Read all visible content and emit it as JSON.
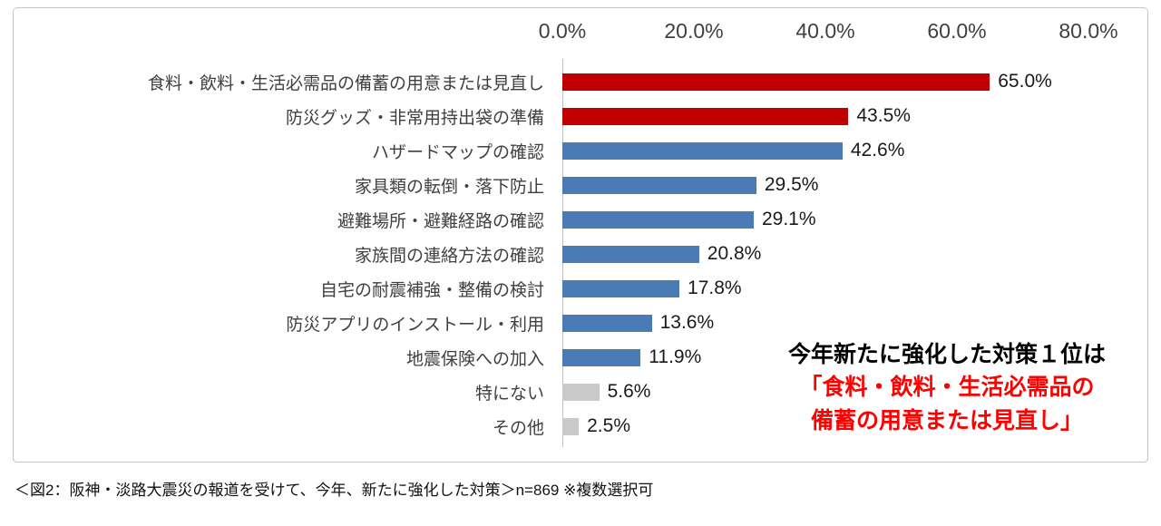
{
  "chart_data": {
    "type": "bar",
    "orientation": "horizontal",
    "title": "",
    "categories": [
      "食料・飲料・生活必需品の備蓄の用意または見直し",
      "防災グッズ・非常用持出袋の準備",
      "ハザードマップの確認",
      "家具類の転倒・落下防止",
      "避難場所・避難経路の確認",
      "家族間の連絡方法の確認",
      "自宅の耐震補強・整備の検討",
      "防災アプリのインストール・利用",
      "地震保険への加入",
      "特にない",
      "その他"
    ],
    "values": [
      65.0,
      43.5,
      42.6,
      29.5,
      29.1,
      20.8,
      17.8,
      13.6,
      11.9,
      5.6,
      2.5
    ],
    "value_labels": [
      "65.0%",
      "43.5%",
      "42.6%",
      "29.5%",
      "29.1%",
      "20.8%",
      "17.8%",
      "13.6%",
      "11.9%",
      "5.6%",
      "2.5%"
    ],
    "bar_colors": [
      "#c00000",
      "#c00000",
      "#4a7bb5",
      "#4a7bb5",
      "#4a7bb5",
      "#4a7bb5",
      "#4a7bb5",
      "#4a7bb5",
      "#4a7bb5",
      "#c9c9c9",
      "#c9c9c9"
    ],
    "xlim": [
      0,
      80
    ],
    "x_ticks": [
      "0.0%",
      "20.0%",
      "40.0%",
      "60.0%",
      "80.0%"
    ],
    "grid": false,
    "legend": "none"
  },
  "annotation": {
    "line1": "今年新たに強化した対策１位は",
    "line2": "「食料・飲料・生活必需品の",
    "line3": "備蓄の用意または見直し」",
    "line1_color": "#000000",
    "highlight_color": "#ff0000"
  },
  "caption": "＜図2：阪神・淡路大震災の報道を受けて、今年、新たに強化した対策＞n=869 ※複数選択可"
}
